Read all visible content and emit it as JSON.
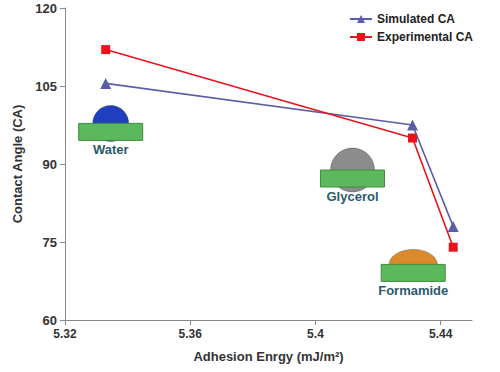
{
  "chart_data": {
    "type": "line",
    "x_label": "Adhesion Enrgy (mJ/m²)",
    "y_label": "Contact Angle (CA)",
    "x": [
      5.333,
      5.431,
      5.444
    ],
    "series": [
      {
        "name": "Simulated CA",
        "color": "#5b5ea6",
        "marker": "triangle",
        "line_style": "solid",
        "values": [
          105.5,
          97.5,
          78
        ]
      },
      {
        "name": "Experimental CA",
        "color": "#e8141c",
        "marker": "square",
        "line_style": "solid",
        "values": [
          112,
          95,
          74
        ]
      }
    ],
    "xlim": [
      5.32,
      5.45
    ],
    "xticks": [
      5.32,
      5.36,
      5.4,
      5.44
    ],
    "ylim": [
      60,
      120
    ],
    "yticks": [
      60,
      75,
      90,
      105,
      120
    ],
    "grid": false,
    "legend": "upper right",
    "annotations": [
      "Water",
      "Glycerol",
      "Formamide"
    ]
  }
}
